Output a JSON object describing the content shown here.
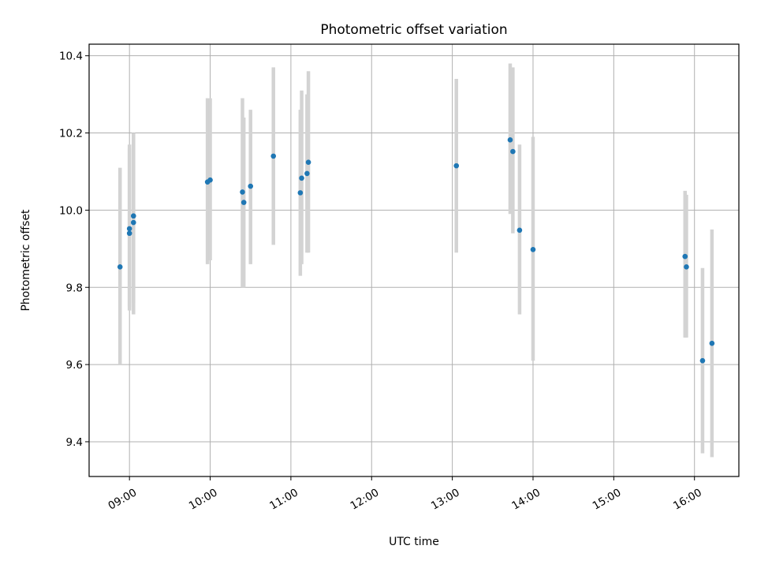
{
  "chart_data": {
    "type": "scatter",
    "title": "Photometric offset variation",
    "xlabel": "UTC time",
    "ylabel": "Photometric offset",
    "x_unit": "UTC time of day",
    "xlim": [
      "08:30",
      "16:33"
    ],
    "ylim": [
      9.31,
      10.43
    ],
    "x_ticks": [
      "09:00",
      "10:00",
      "11:00",
      "12:00",
      "13:00",
      "14:00",
      "15:00",
      "16:00"
    ],
    "y_ticks": [
      "9.4",
      "9.6",
      "9.8",
      "10.0",
      "10.2",
      "10.4"
    ],
    "grid": true,
    "legend": "none",
    "colors": {
      "points": "#1f77b4",
      "errorbars": "#d3d3d3"
    },
    "points": [
      {
        "t": "08:53",
        "y": 9.853,
        "lo": 9.6,
        "hi": 10.11
      },
      {
        "t": "09:00",
        "y": 9.94,
        "lo": 9.74,
        "hi": 10.16
      },
      {
        "t": "09:00",
        "y": 9.952,
        "lo": 9.75,
        "hi": 10.17
      },
      {
        "t": "09:03",
        "y": 9.985,
        "lo": 9.76,
        "hi": 10.2
      },
      {
        "t": "09:03",
        "y": 9.968,
        "lo": 9.73,
        "hi": 10.2
      },
      {
        "t": "09:58",
        "y": 10.073,
        "lo": 9.86,
        "hi": 10.29
      },
      {
        "t": "10:00",
        "y": 10.078,
        "lo": 9.87,
        "hi": 10.29
      },
      {
        "t": "10:24",
        "y": 10.047,
        "lo": 9.8,
        "hi": 10.29
      },
      {
        "t": "10:25",
        "y": 10.02,
        "lo": 9.8,
        "hi": 10.24
      },
      {
        "t": "10:30",
        "y": 10.062,
        "lo": 9.86,
        "hi": 10.26
      },
      {
        "t": "10:47",
        "y": 10.14,
        "lo": 9.91,
        "hi": 10.37
      },
      {
        "t": "11:07",
        "y": 10.045,
        "lo": 9.83,
        "hi": 10.26
      },
      {
        "t": "11:08",
        "y": 10.083,
        "lo": 9.86,
        "hi": 10.31
      },
      {
        "t": "11:12",
        "y": 10.095,
        "lo": 9.89,
        "hi": 10.3
      },
      {
        "t": "11:13",
        "y": 10.124,
        "lo": 9.89,
        "hi": 10.36
      },
      {
        "t": "13:03",
        "y": 10.115,
        "lo": 9.89,
        "hi": 10.34
      },
      {
        "t": "13:43",
        "y": 10.182,
        "lo": 9.99,
        "hi": 10.38
      },
      {
        "t": "13:45",
        "y": 10.152,
        "lo": 9.94,
        "hi": 10.37
      },
      {
        "t": "13:50",
        "y": 9.948,
        "lo": 9.73,
        "hi": 10.17
      },
      {
        "t": "14:00",
        "y": 9.898,
        "lo": 9.61,
        "hi": 10.19
      },
      {
        "t": "15:53",
        "y": 9.88,
        "lo": 9.67,
        "hi": 10.05
      },
      {
        "t": "15:54",
        "y": 9.853,
        "lo": 9.67,
        "hi": 10.04
      },
      {
        "t": "16:06",
        "y": 9.61,
        "lo": 9.37,
        "hi": 9.85
      },
      {
        "t": "16:13",
        "y": 9.655,
        "lo": 9.36,
        "hi": 9.95
      }
    ]
  }
}
